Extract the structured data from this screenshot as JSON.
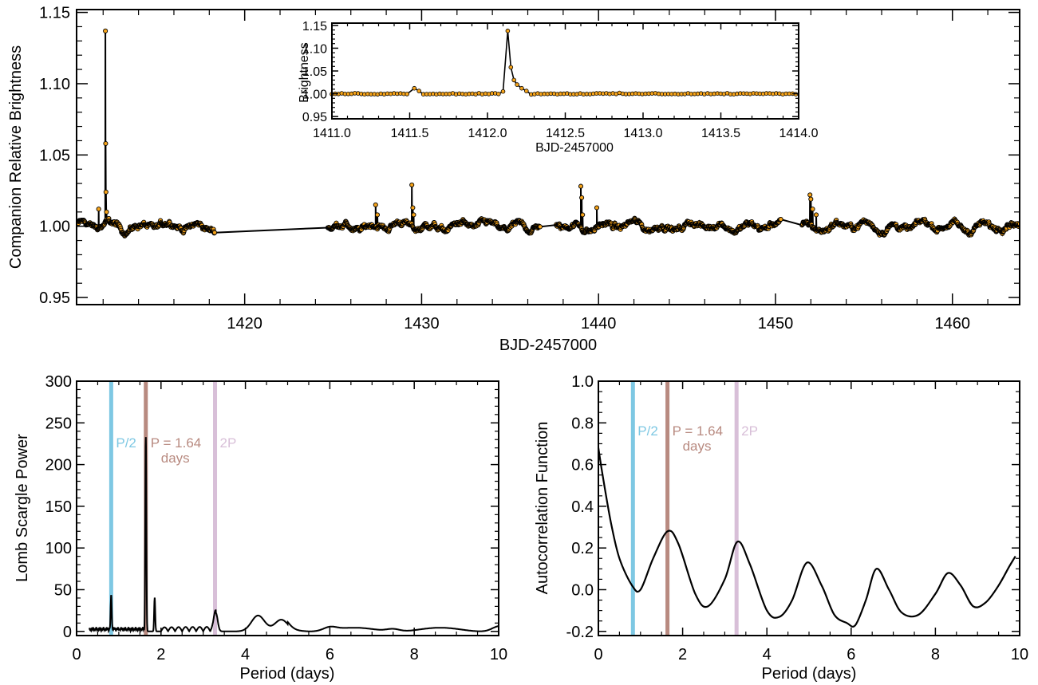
{
  "colors": {
    "point_fill": "#f5a31a",
    "point_edge": "#000000",
    "line": "#000000",
    "p_half": "#7ec8e3",
    "p_main": "#b88a80",
    "p_double": "#d8bfd8"
  },
  "chart_data": [
    {
      "type": "scatter",
      "ylabel": "Companion Relative Brightness",
      "xlabel": "BJD-2457000",
      "xlim": [
        1410.5,
        1463.8
      ],
      "ylim": [
        0.945,
        1.152
      ],
      "xticks": [
        1420,
        1430,
        1440,
        1450,
        1460
      ],
      "yticks": [
        0.95,
        1.0,
        1.05,
        1.1,
        1.15
      ],
      "ytick_labels": [
        "0.95",
        "1.00",
        "1.05",
        "1.10",
        "1.15"
      ],
      "baseline": 1.0,
      "segments": [
        [
          1410.6,
          1418.3
        ],
        [
          1424.7,
          1436.7
        ],
        [
          1437.6,
          1450.3
        ],
        [
          1451.5,
          1463.8
        ]
      ],
      "flare_points": [
        {
          "x": 1411.75,
          "y": 1.012
        },
        {
          "x": 1412.13,
          "y": 1.137
        },
        {
          "x": 1412.14,
          "y": 1.058
        },
        {
          "x": 1412.16,
          "y": 1.024
        },
        {
          "x": 1412.19,
          "y": 1.01
        },
        {
          "x": 1427.4,
          "y": 1.015
        },
        {
          "x": 1427.5,
          "y": 1.008
        },
        {
          "x": 1429.45,
          "y": 1.029
        },
        {
          "x": 1429.5,
          "y": 1.013
        },
        {
          "x": 1429.55,
          "y": 1.008
        },
        {
          "x": 1439.0,
          "y": 1.028
        },
        {
          "x": 1439.05,
          "y": 1.02
        },
        {
          "x": 1439.1,
          "y": 1.008
        },
        {
          "x": 1439.9,
          "y": 1.013
        },
        {
          "x": 1451.95,
          "y": 1.022
        },
        {
          "x": 1452.0,
          "y": 1.019
        },
        {
          "x": 1452.1,
          "y": 1.012
        },
        {
          "x": 1452.3,
          "y": 1.008
        }
      ],
      "inset": {
        "type": "scatter",
        "ylabel": "Brightness",
        "xlabel": "BJD-2457000",
        "xlim": [
          1411.0,
          1414.0
        ],
        "ylim": [
          0.945,
          1.155
        ],
        "xticks": [
          1411.0,
          1411.5,
          1412.0,
          1412.5,
          1413.0,
          1413.5,
          1414.0
        ],
        "xtick_labels": [
          "1411.0",
          "1411.5",
          "1412.0",
          "1412.5",
          "1413.0",
          "1413.5",
          "1414.0"
        ],
        "yticks": [
          0.95,
          1.0,
          1.05,
          1.1,
          1.15
        ],
        "ytick_labels": [
          "0.95",
          "1.00",
          "1.05",
          "1.10",
          "1.15"
        ],
        "points": [
          {
            "x": 1411.53,
            "y": 1.012
          },
          {
            "x": 1411.56,
            "y": 1.006
          },
          {
            "x": 1412.1,
            "y": 1.005
          },
          {
            "x": 1412.13,
            "y": 1.138
          },
          {
            "x": 1412.15,
            "y": 1.058
          },
          {
            "x": 1412.17,
            "y": 1.03
          },
          {
            "x": 1412.19,
            "y": 1.02
          },
          {
            "x": 1412.22,
            "y": 1.012
          },
          {
            "x": 1412.25,
            "y": 1.006
          }
        ]
      }
    },
    {
      "type": "line",
      "ylabel": "Lomb Scargle Power",
      "xlabel": "Period (days)",
      "xlim": [
        0,
        10
      ],
      "ylim": [
        -5,
        300
      ],
      "xticks": [
        0,
        2,
        4,
        6,
        8,
        10
      ],
      "yticks": [
        0,
        50,
        100,
        150,
        200,
        250,
        300
      ],
      "markers": [
        {
          "name": "P/2",
          "x": 0.82,
          "label": "P/2"
        },
        {
          "name": "P",
          "x": 1.64,
          "label": "P = 1.64",
          "label2": "days"
        },
        {
          "name": "2P",
          "x": 3.28,
          "label": "2P"
        }
      ],
      "peaks": [
        {
          "x": 0.82,
          "y": 40
        },
        {
          "x": 1.64,
          "y": 233
        },
        {
          "x": 1.85,
          "y": 40
        },
        {
          "x": 3.3,
          "y": 22
        },
        {
          "x": 4.3,
          "y": 19
        },
        {
          "x": 4.85,
          "y": 14
        },
        {
          "x": 6.0,
          "y": 4
        },
        {
          "x": 7.5,
          "y": 3
        },
        {
          "x": 10.0,
          "y": 5
        }
      ]
    },
    {
      "type": "line",
      "ylabel": "Autocorrelation Function",
      "xlabel": "Period (days)",
      "xlim": [
        0,
        10
      ],
      "ylim": [
        -0.22,
        1.0
      ],
      "xticks": [
        0,
        2,
        4,
        6,
        8,
        10
      ],
      "yticks": [
        -0.2,
        0.0,
        0.2,
        0.4,
        0.6,
        0.8,
        1.0
      ],
      "ytick_labels": [
        "-0.2",
        "0.0",
        "0.2",
        "0.4",
        "0.6",
        "0.8",
        "1.0"
      ],
      "markers": [
        {
          "name": "P/2",
          "x": 0.82,
          "label": "P/2"
        },
        {
          "name": "P",
          "x": 1.64,
          "label": "P = 1.64",
          "label2": "days"
        },
        {
          "name": "2P",
          "x": 3.28,
          "label": "2P"
        }
      ],
      "x": [
        0.0,
        0.1,
        0.3,
        0.5,
        0.8,
        1.0,
        1.3,
        1.64,
        1.9,
        2.3,
        2.6,
        3.0,
        3.3,
        3.6,
        4.0,
        4.3,
        4.6,
        4.95,
        5.3,
        5.6,
        5.9,
        6.1,
        6.35,
        6.6,
        6.9,
        7.2,
        7.6,
        8.0,
        8.3,
        8.6,
        8.9,
        9.2,
        9.5,
        9.75,
        9.9
      ],
      "y": [
        0.68,
        0.55,
        0.32,
        0.15,
        0.02,
        0.0,
        0.15,
        0.28,
        0.22,
        -0.02,
        -0.08,
        0.05,
        0.23,
        0.12,
        -0.1,
        -0.13,
        -0.05,
        0.13,
        0.02,
        -0.12,
        -0.16,
        -0.17,
        -0.05,
        0.1,
        0.0,
        -0.11,
        -0.12,
        -0.02,
        0.08,
        0.02,
        -0.08,
        -0.06,
        0.02,
        0.11,
        0.16
      ]
    }
  ]
}
